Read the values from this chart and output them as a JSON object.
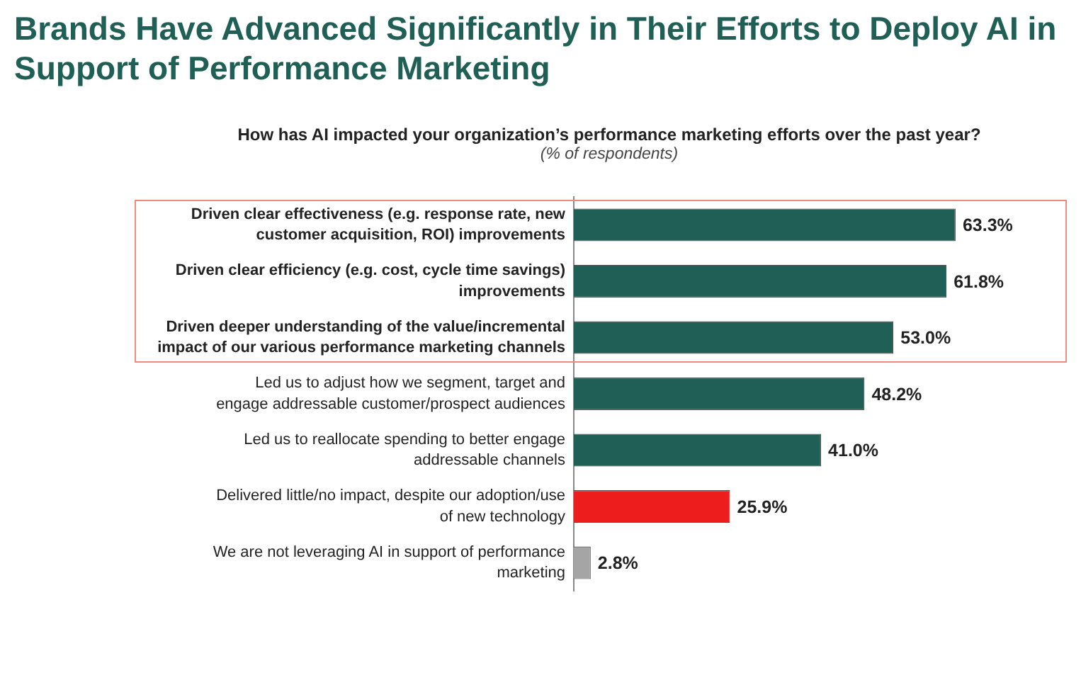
{
  "chart_data": {
    "type": "bar",
    "orientation": "horizontal",
    "title": "Brands Have Advanced Significantly in Their Efforts to Deploy AI in Support of Performance Marketing",
    "subtitle": "How has AI impacted your organization’s performance marketing efforts over the past year?",
    "annotations": [
      "(% of respondents)"
    ],
    "categories": [
      "Driven clear effectiveness (e.g. response rate, new customer acquisition, ROI) improvements",
      "Driven clear efficiency (e.g. cost, cycle time savings) improvements",
      "Driven deeper understanding of the value/incremental impact of our various performance marketing channels",
      "Led us to adjust how we segment, target and engage addressable customer/prospect audiences",
      "Led us to reallocate spending to better engage addressable channels",
      "Delivered little/no impact, despite our adoption/use of new technology",
      "We are not leveraging AI in support of performance marketing"
    ],
    "values": [
      63.3,
      61.8,
      53.0,
      48.2,
      41.0,
      25.9,
      2.8
    ],
    "value_labels": [
      "63.3%",
      "61.8%",
      "53.0%",
      "48.2%",
      "41.0%",
      "25.9%",
      "2.8%"
    ],
    "colors": [
      "#1f5f55",
      "#1f5f55",
      "#1f5f55",
      "#1f5f55",
      "#1f5f55",
      "#ee1d1d",
      "#a5a5a5"
    ],
    "grid": false,
    "legend": false
  }
}
